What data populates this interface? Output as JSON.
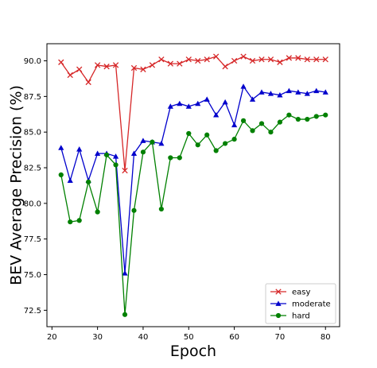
{
  "chart_data": {
    "type": "line",
    "xlabel": "Epoch",
    "ylabel": "BEV Average Precision (%)",
    "xlim": [
      18.9,
      83.1
    ],
    "ylim": [
      71.35,
      91.2
    ],
    "xticks": [
      20,
      30,
      40,
      50,
      60,
      70,
      80
    ],
    "yticks": [
      72.5,
      75.0,
      77.5,
      80.0,
      82.5,
      85.0,
      87.5,
      90.0
    ],
    "grid": false,
    "legend_position": "lower-right",
    "x": [
      22,
      24,
      26,
      28,
      30,
      32,
      34,
      36,
      38,
      40,
      42,
      44,
      46,
      48,
      50,
      52,
      54,
      56,
      58,
      60,
      62,
      64,
      66,
      68,
      70,
      72,
      74,
      76,
      78,
      80
    ],
    "series": [
      {
        "name": "easy",
        "color": "#d62728",
        "marker": "x",
        "values": [
          89.9,
          89.0,
          89.4,
          88.5,
          89.7,
          89.6,
          89.7,
          82.3,
          89.5,
          89.4,
          89.7,
          90.1,
          89.8,
          89.8,
          90.1,
          90.0,
          90.1,
          90.3,
          89.6,
          90.0,
          90.3,
          90.0,
          90.1,
          90.1,
          89.9,
          90.2,
          90.2,
          90.1,
          90.1,
          90.1
        ]
      },
      {
        "name": "moderate",
        "color": "#0000cc",
        "marker": "triangle",
        "values": [
          83.9,
          81.6,
          83.8,
          81.6,
          83.5,
          83.5,
          83.3,
          75.1,
          83.5,
          84.4,
          84.3,
          84.2,
          86.8,
          87.0,
          86.8,
          87.0,
          87.3,
          86.2,
          87.1,
          85.5,
          88.2,
          87.3,
          87.8,
          87.7,
          87.6,
          87.9,
          87.8,
          87.7,
          87.9,
          87.8
        ]
      },
      {
        "name": "hard",
        "color": "#008000",
        "marker": "circle",
        "values": [
          82.0,
          78.7,
          78.8,
          81.5,
          79.4,
          83.4,
          82.7,
          72.2,
          79.5,
          83.6,
          84.3,
          79.6,
          83.2,
          83.2,
          84.9,
          84.1,
          84.8,
          83.7,
          84.2,
          84.5,
          85.8,
          85.1,
          85.6,
          85.0,
          85.7,
          86.2,
          85.9,
          85.9,
          86.1,
          86.2
        ]
      }
    ]
  }
}
